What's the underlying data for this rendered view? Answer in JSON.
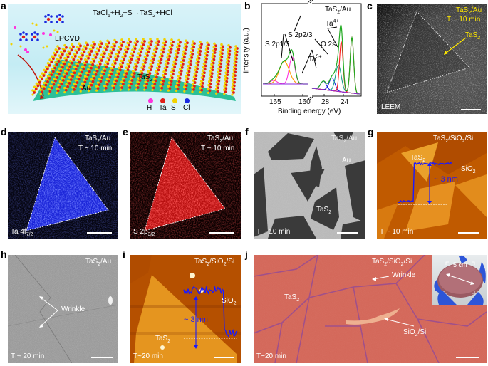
{
  "panels": {
    "a": {
      "label": "a",
      "reaction": "TaCl5+H2+S→TaS2+HCl",
      "reaction_parts": [
        "TaCl",
        "5",
        "+H",
        "2",
        "+S→TaS",
        "2",
        "+HCl"
      ],
      "method": "LPCVD",
      "film": "TaS",
      "film_sub": "2",
      "substrate": "Au",
      "legend": [
        {
          "label": "H",
          "color": "#ff33dd"
        },
        {
          "label": "Ta",
          "color": "#e0201a"
        },
        {
          "label": "S",
          "color": "#f2d200"
        },
        {
          "label": "Cl",
          "color": "#1a2ae0"
        }
      ]
    },
    "b": {
      "label": "b",
      "sample": "TaS",
      "sample_sub": "2",
      "sample_rest": "/Au",
      "ylabel": "Intensity (a.u.)",
      "xlabel": "Binding energy (eV)",
      "ticks": [
        "165",
        "160",
        "28",
        "24"
      ],
      "peaks": {
        "ta4": "Ta",
        "ta4_sup": "4+",
        "s2p23": "S 2p2/3",
        "s2p13": "S 2p1/3",
        "o2s": "O 2s",
        "ta5": "Ta",
        "ta5_sup": "5+"
      }
    },
    "c": {
      "label": "c",
      "sample": "TaS",
      "sample_sub": "2",
      "sample_rest": "/Au",
      "time": "T ~ 10 min",
      "pointer": "TaS",
      "pointer_sub": "2",
      "mode": "LEEM"
    },
    "d": {
      "label": "d",
      "sample": "TaS",
      "sample_sub": "2",
      "sample_rest": "/Au",
      "time": "T ~ 10 min",
      "channel": "Ta 4f",
      "channel_sub": "7/2"
    },
    "e": {
      "label": "e",
      "sample": "TaS",
      "sample_sub": "2",
      "sample_rest": "/Au",
      "time": "T ~ 10 min",
      "channel": "S 2p",
      "channel_sub": "3/2"
    },
    "f": {
      "label": "f",
      "sample": "TaS",
      "sample_sub": "2",
      "sample_rest": "/Au",
      "substrate": "Au",
      "film": "TaS",
      "film_sub": "2",
      "time": "T ~ 10 min"
    },
    "g": {
      "label": "g",
      "sample": "TaS",
      "sample_sub": "2",
      "sample_mid": "/SiO",
      "sample_sub2": "2",
      "sample_rest": "/Si",
      "film": "TaS",
      "film_sub": "2",
      "oxide": "SiO",
      "oxide_sub": "2",
      "height": "~ 3 nm",
      "time": "T ~ 10 min"
    },
    "h": {
      "label": "h",
      "sample": "TaS",
      "sample_sub": "2",
      "sample_rest": "/Au",
      "wrinkle": "Wrinkle",
      "time": "T ~ 20 min"
    },
    "i": {
      "label": "i",
      "sample": "TaS",
      "sample_sub": "2",
      "sample_mid": "/SiO",
      "sample_sub2": "2",
      "sample_rest": "/Si",
      "oxide": "SiO",
      "oxide_sub": "2",
      "film": "TaS",
      "film_sub": "2",
      "height": "~ 3 nm",
      "time": "T~20 min"
    },
    "j": {
      "label": "j",
      "sample": "TaS",
      "sample_sub": "2",
      "sample_mid": "/SiO",
      "sample_sub2": "2",
      "sample_rest": "/Si",
      "wrinkle": "Wrinkle",
      "film": "TaS",
      "film_sub": "2",
      "substrate": "SiO",
      "substrate_sub": "2",
      "substrate_rest": "/Si",
      "wafer_size": "5 cm",
      "time": "T~20 min"
    }
  },
  "colors": {
    "profile": "#1a1aff",
    "afm": "#c86400",
    "optical": "#d46a5c",
    "ta_map": "#2030ff",
    "s_map": "#ff2020"
  }
}
